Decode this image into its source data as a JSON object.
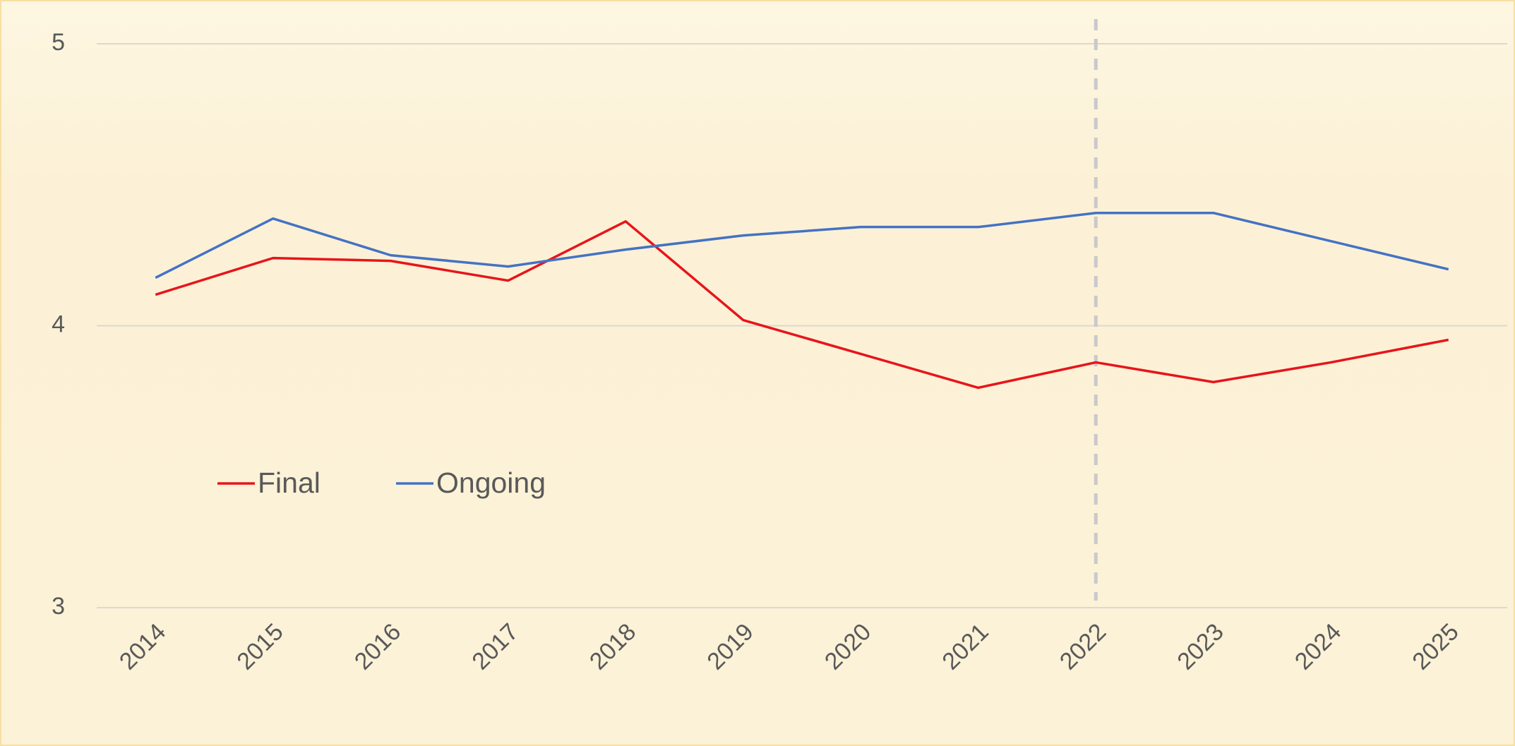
{
  "chart_data": {
    "type": "line",
    "categories": [
      "2014",
      "2015",
      "2016",
      "2017",
      "2018",
      "2019",
      "2020",
      "2021",
      "2022",
      "2023",
      "2024",
      "2025"
    ],
    "series": [
      {
        "name": "Final",
        "color": "#e8141b",
        "values": [
          4.11,
          4.24,
          4.23,
          4.16,
          4.37,
          4.02,
          3.9,
          3.78,
          3.87,
          3.8,
          3.87,
          3.95
        ]
      },
      {
        "name": "Ongoing",
        "color": "#4472c4",
        "values": [
          4.17,
          4.38,
          4.25,
          4.21,
          4.27,
          4.32,
          4.35,
          4.35,
          4.4,
          4.4,
          4.3,
          4.2
        ]
      }
    ],
    "ylim": [
      3,
      5
    ],
    "yticks": [
      3,
      4,
      5
    ],
    "grid": true,
    "reference_line_category": "2022",
    "legend": "lower-left"
  }
}
